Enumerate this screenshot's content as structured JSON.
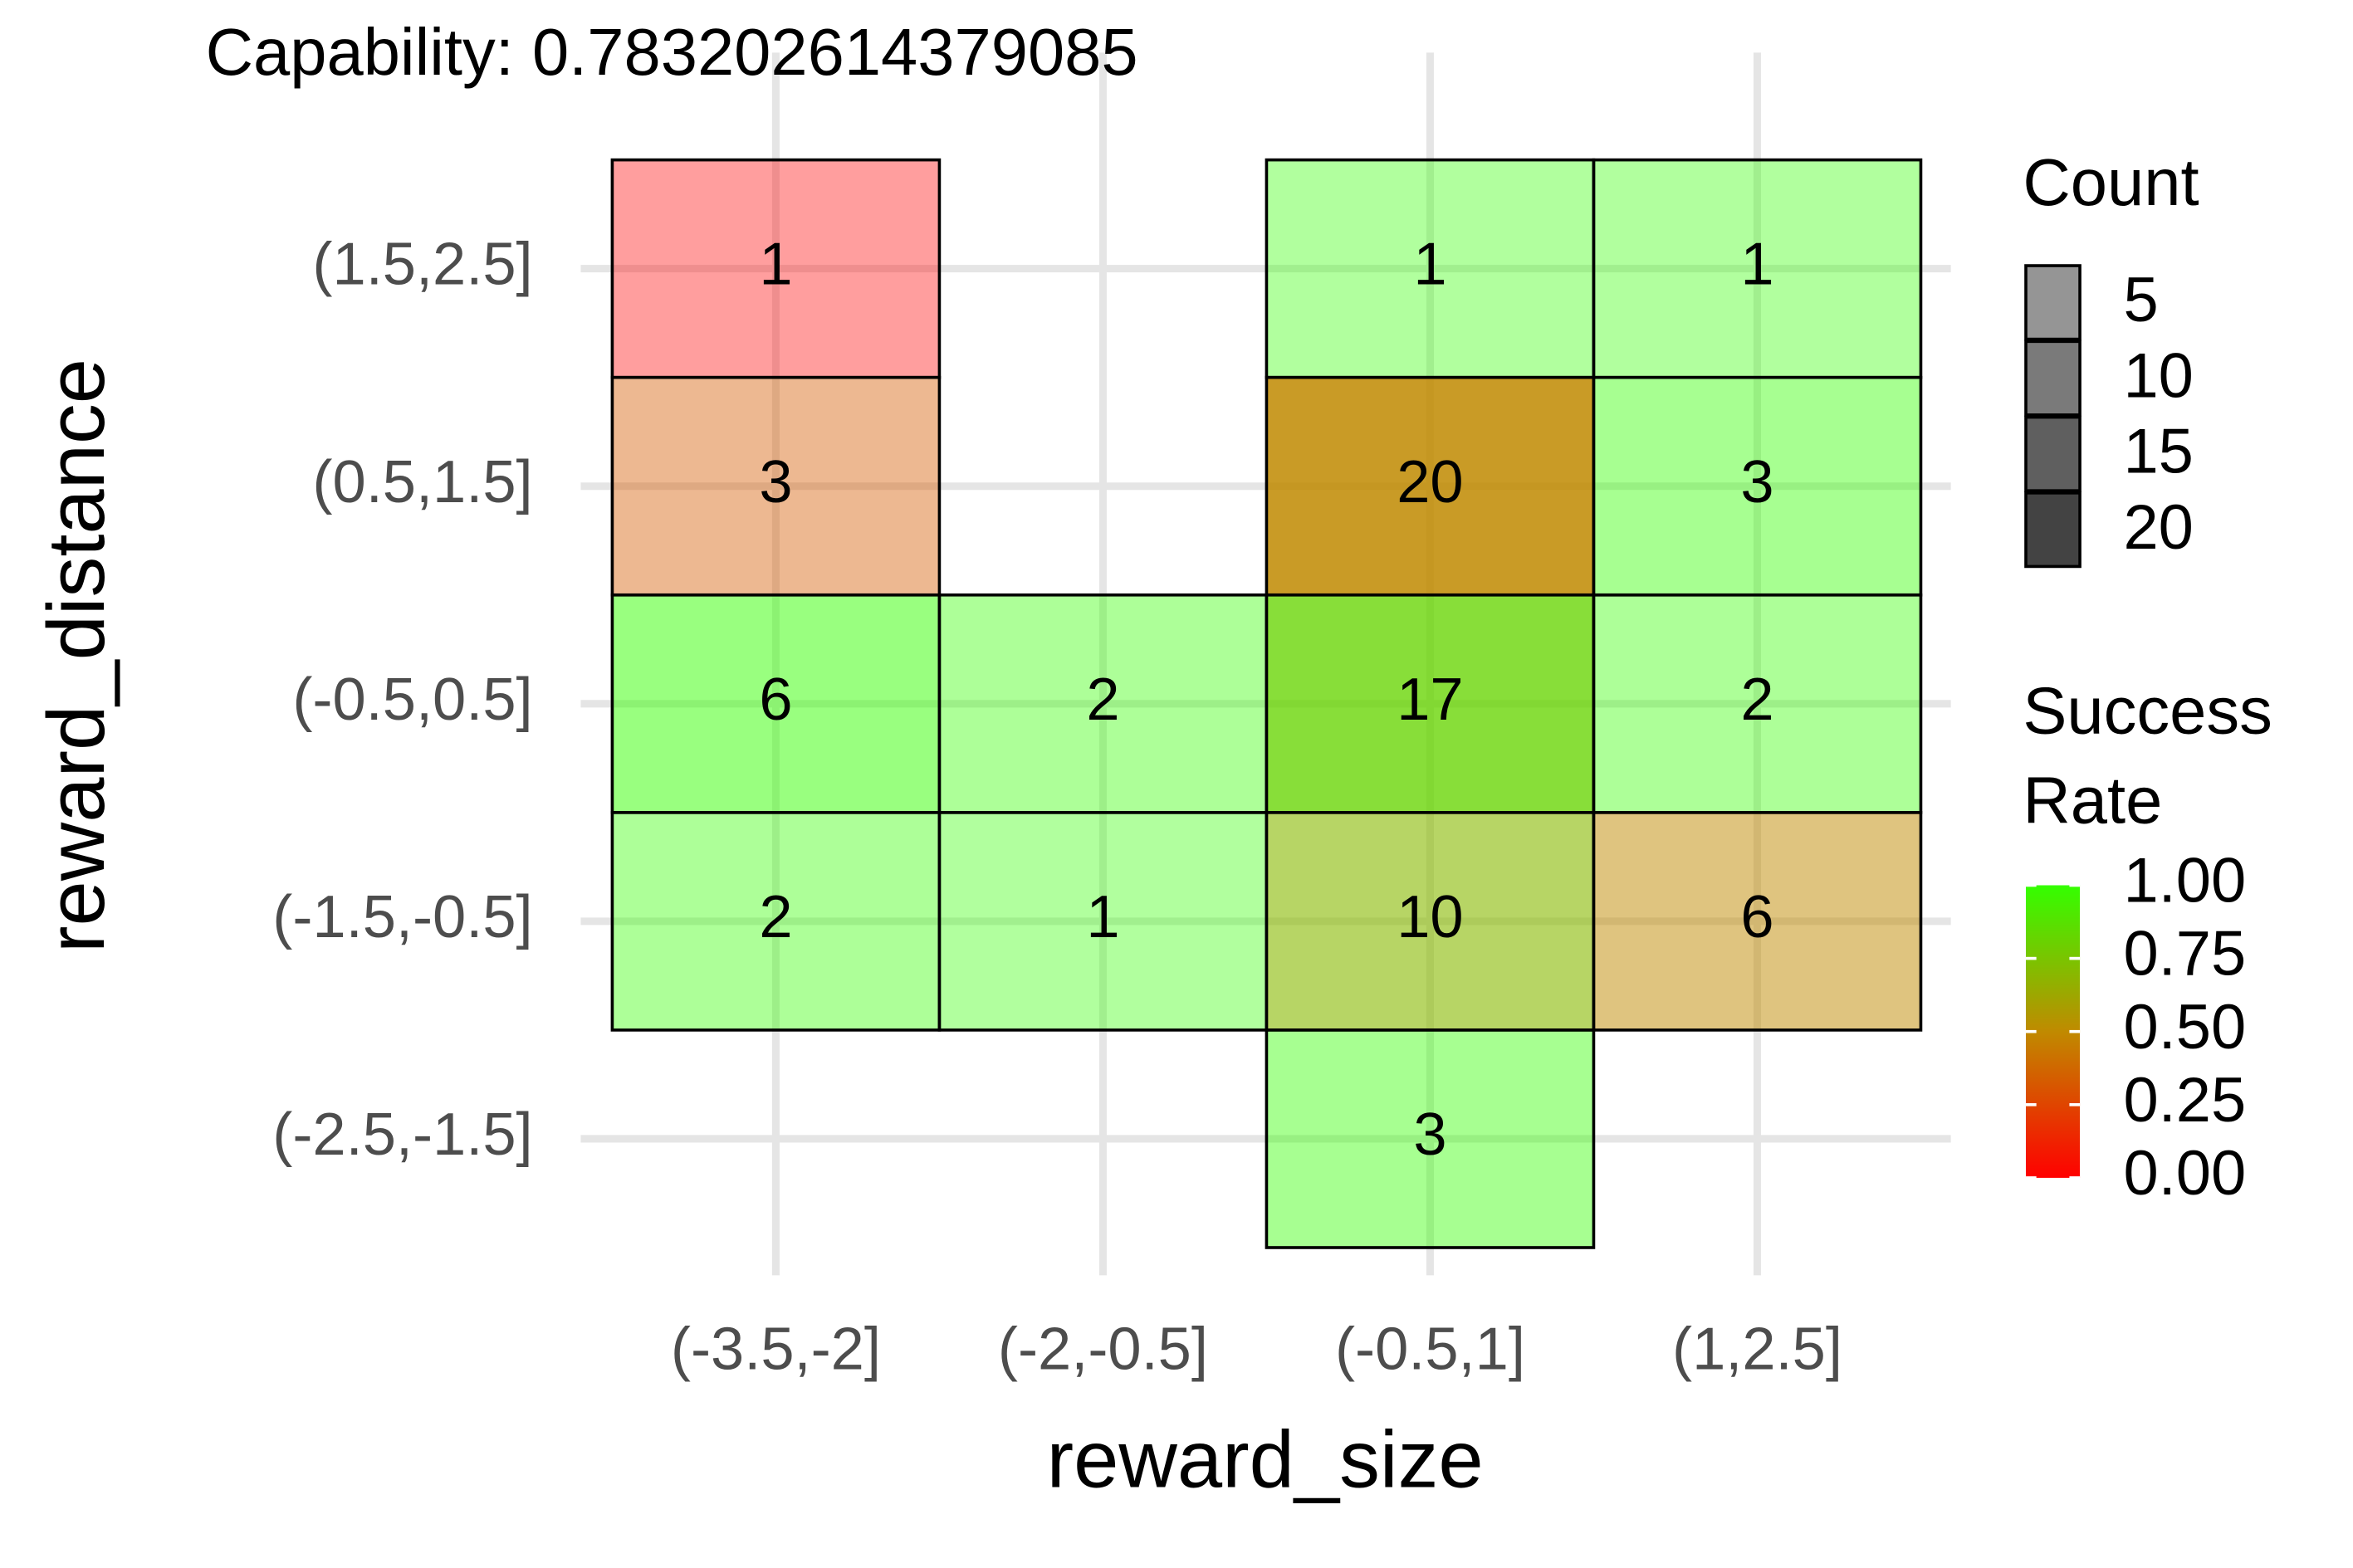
{
  "chart_data": {
    "type": "heatmap",
    "title": "Capability:  0.783202614379085",
    "x_label": "reward_size",
    "y_label": "reward_distance",
    "x_categories": [
      "(-3.5,-2]",
      "(-2,-0.5]",
      "(-0.5,1]",
      "(1,2.5]"
    ],
    "y_categories": [
      "(-2.5,-1.5]",
      "(-1.5,-0.5]",
      "(-0.5,0.5]",
      "(0.5,1.5]",
      "(1.5,2.5]"
    ],
    "cells": [
      {
        "x": "(-3.5,-2]",
        "y": "(1.5,2.5]",
        "count": 1,
        "success_rate": 0
      },
      {
        "x": "(-0.5,1]",
        "y": "(1.5,2.5]",
        "count": 1,
        "success_rate": 1
      },
      {
        "x": "(1,2.5]",
        "y": "(1.5,2.5]",
        "count": 1,
        "success_rate": 1
      },
      {
        "x": "(-3.5,-2]",
        "y": "(0.5,1.5]",
        "count": 3,
        "success_rate": 0.33
      },
      {
        "x": "(-0.5,1]",
        "y": "(0.5,1.5]",
        "count": 20,
        "success_rate": 0.5
      },
      {
        "x": "(1,2.5]",
        "y": "(0.5,1.5]",
        "count": 3,
        "success_rate": 1
      },
      {
        "x": "(-3.5,-2]",
        "y": "(-0.5,0.5]",
        "count": 6,
        "success_rate": 1
      },
      {
        "x": "(-2,-0.5]",
        "y": "(-0.5,0.5]",
        "count": 2,
        "success_rate": 1
      },
      {
        "x": "(-0.5,1]",
        "y": "(-0.5,0.5]",
        "count": 17,
        "success_rate": 0.82
      },
      {
        "x": "(1,2.5]",
        "y": "(-0.5,0.5]",
        "count": 2,
        "success_rate": 1
      },
      {
        "x": "(-3.5,-2]",
        "y": "(-1.5,-0.5]",
        "count": 2,
        "success_rate": 1
      },
      {
        "x": "(-2,-0.5]",
        "y": "(-1.5,-0.5]",
        "count": 1,
        "success_rate": 1
      },
      {
        "x": "(-0.5,1]",
        "y": "(-1.5,-0.5]",
        "count": 10,
        "success_rate": 0.7
      },
      {
        "x": "(1,2.5]",
        "y": "(-1.5,-0.5]",
        "count": 6,
        "success_rate": 0.5
      },
      {
        "x": "(-0.5,1]",
        "y": "(-2.5,-1.5]",
        "count": 3,
        "success_rate": 1
      }
    ],
    "count_legend_title": "Count",
    "count_ticks": [
      5,
      10,
      15,
      20
    ],
    "color_legend_title": [
      "Success",
      "Rate"
    ],
    "color_ticks": [
      {
        "value": 1,
        "label": "1.00"
      },
      {
        "value": 0.75,
        "label": "0.75"
      },
      {
        "value": 0.5,
        "label": "0.50"
      },
      {
        "value": 0.25,
        "label": "0.25"
      },
      {
        "value": 0,
        "label": "0.00"
      }
    ],
    "color_lim": [
      0,
      1
    ],
    "colors": {
      "low": "#ff0000",
      "mid": "#c08a00",
      "high": "#33ff00"
    },
    "grid": true
  }
}
